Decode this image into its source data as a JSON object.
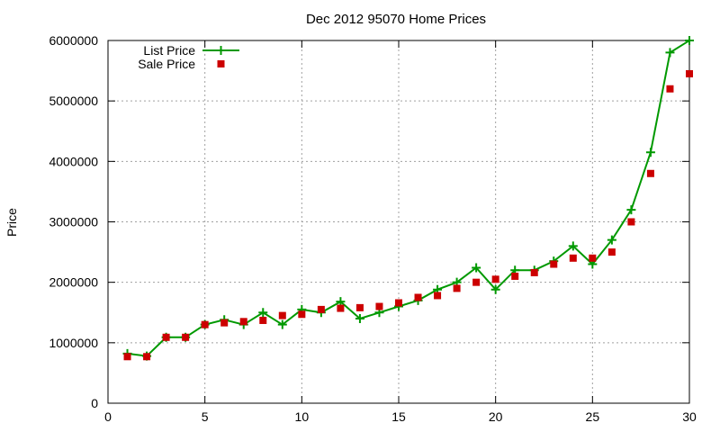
{
  "chart_data": {
    "type": "line",
    "title": "Dec 2012 95070 Home Prices",
    "xlabel": "",
    "ylabel": "Price",
    "xlim": [
      0,
      30
    ],
    "ylim": [
      0,
      6000000
    ],
    "xticks": [
      0,
      5,
      10,
      15,
      20,
      25,
      30
    ],
    "yticks": [
      0,
      1000000,
      2000000,
      3000000,
      4000000,
      5000000,
      6000000
    ],
    "grid": true,
    "legend_position": "top-left",
    "series": [
      {
        "name": "List Price",
        "style": "line+plus",
        "color": "#009900",
        "x": [
          1,
          2,
          3,
          4,
          5,
          6,
          7,
          8,
          9,
          10,
          11,
          12,
          13,
          14,
          15,
          16,
          17,
          18,
          19,
          20,
          21,
          22,
          23,
          24,
          25,
          26,
          27,
          28,
          29,
          30
        ],
        "y": [
          820000,
          780000,
          1090000,
          1090000,
          1300000,
          1380000,
          1300000,
          1500000,
          1300000,
          1550000,
          1500000,
          1680000,
          1400000,
          1500000,
          1600000,
          1700000,
          1880000,
          2000000,
          2240000,
          1880000,
          2200000,
          2200000,
          2350000,
          2600000,
          2300000,
          2700000,
          3200000,
          4150000,
          5800000,
          6000000
        ]
      },
      {
        "name": "Sale Price",
        "style": "square",
        "color": "#cc0000",
        "x": [
          1,
          2,
          3,
          4,
          5,
          6,
          7,
          8,
          9,
          10,
          11,
          12,
          13,
          14,
          15,
          16,
          17,
          18,
          19,
          20,
          21,
          22,
          23,
          24,
          25,
          26,
          27,
          28,
          29,
          30
        ],
        "y": [
          770000,
          770000,
          1090000,
          1090000,
          1300000,
          1330000,
          1350000,
          1370000,
          1450000,
          1470000,
          1550000,
          1570000,
          1580000,
          1600000,
          1660000,
          1750000,
          1780000,
          1900000,
          2000000,
          2050000,
          2100000,
          2160000,
          2300000,
          2400000,
          2400000,
          2500000,
          3000000,
          3800000,
          5200000,
          5450000
        ]
      }
    ]
  }
}
